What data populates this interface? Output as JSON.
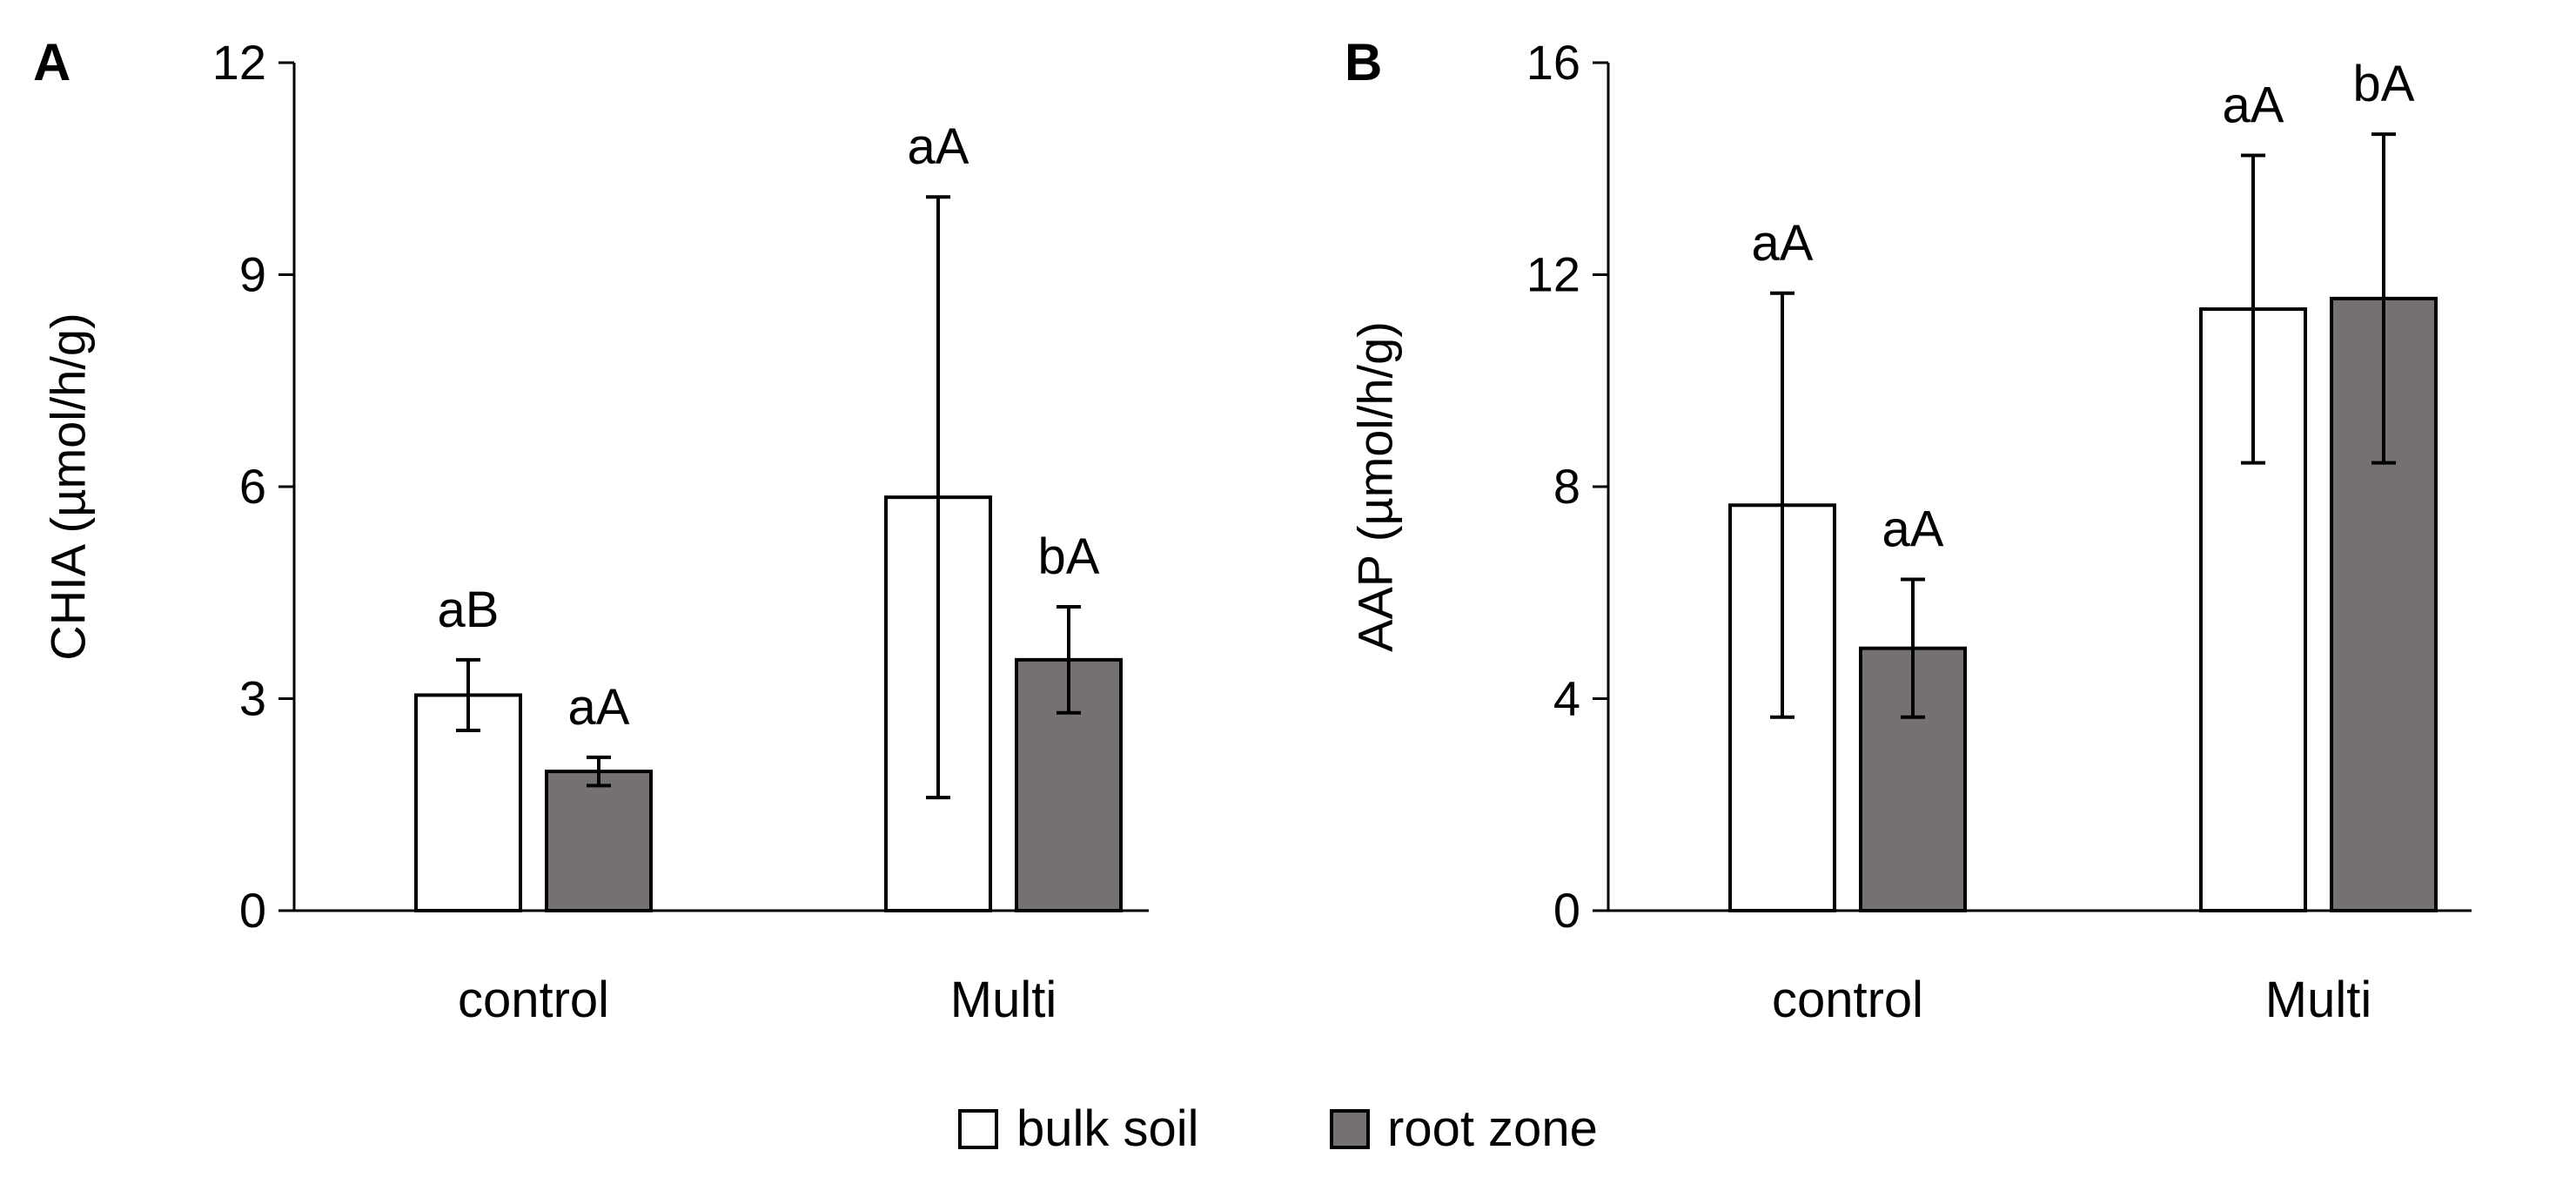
{
  "legend": [
    {
      "label": "bulk soil",
      "color": "#ffffff"
    },
    {
      "label": "root zone",
      "color": "#757171"
    }
  ],
  "chart_data": [
    {
      "panel": "A",
      "type": "bar",
      "ylabel": "CHIA (µmol/h/g)",
      "ylim": [
        0,
        12
      ],
      "yticks": [
        0,
        3,
        6,
        9,
        12
      ],
      "categories": [
        "control",
        "Multi"
      ],
      "series": [
        {
          "name": "bulk soil",
          "color": "#ffffff",
          "values": [
            3.05,
            5.85
          ],
          "errors": [
            0.5,
            4.25
          ],
          "labels": [
            "aB",
            "aA"
          ]
        },
        {
          "name": "root zone",
          "color": "#757171",
          "values": [
            1.97,
            3.55
          ],
          "errors": [
            0.2,
            0.75
          ],
          "labels": [
            "aA",
            "bA"
          ]
        }
      ]
    },
    {
      "panel": "B",
      "type": "bar",
      "ylabel": "AAP (µmol/h/g)",
      "ylim": [
        0,
        16
      ],
      "yticks": [
        0,
        4,
        8,
        12,
        16
      ],
      "categories": [
        "control",
        "Multi"
      ],
      "series": [
        {
          "name": "bulk soil",
          "color": "#ffffff",
          "values": [
            7.65,
            11.35
          ],
          "errors": [
            4.0,
            2.9
          ],
          "labels": [
            "aA",
            "aA"
          ]
        },
        {
          "name": "root zone",
          "color": "#757171",
          "values": [
            4.95,
            11.55
          ],
          "errors": [
            1.3,
            3.1
          ],
          "labels": [
            "aA",
            "bA"
          ]
        }
      ]
    }
  ]
}
